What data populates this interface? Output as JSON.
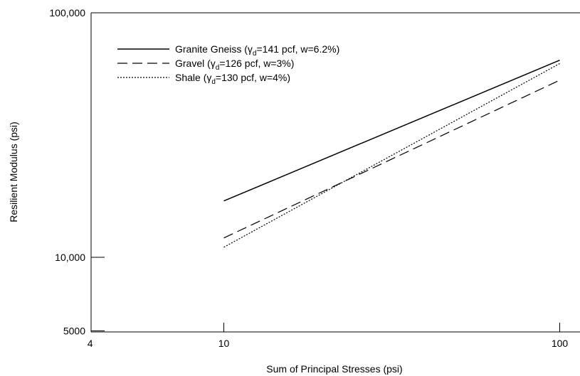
{
  "chart_data": {
    "type": "line",
    "title": "",
    "xlabel": "Sum of Principal Stresses (psi)",
    "ylabel": "Resilient Modulus (psi)",
    "x_scale": "log",
    "y_scale": "log",
    "xlim": [
      4,
      110
    ],
    "ylim": [
      5000,
      100000
    ],
    "xticks": [
      4,
      10,
      100
    ],
    "xtick_labels": [
      "4",
      "10",
      "100"
    ],
    "yticks": [
      5000,
      10000,
      100000
    ],
    "ytick_labels": [
      "5000",
      "10,000",
      "100,000"
    ],
    "grid": false,
    "legend_position": "top-left",
    "series": [
      {
        "name": "Granite Gneiss (γd=141 pcf, w=6.2%)",
        "legend_prefix": "Granite Gneiss (γ",
        "legend_sub": "d",
        "legend_suffix": "=141 pcf, w=6.2%)",
        "style": "solid",
        "x": [
          10,
          100
        ],
        "y": [
          17000,
          64000
        ]
      },
      {
        "name": "Gravel (γd=126 pcf, w=3%)",
        "legend_prefix": "Gravel (γ",
        "legend_sub": "d",
        "legend_suffix": "=126 pcf, w=3%)",
        "style": "dashed",
        "x": [
          10,
          100
        ],
        "y": [
          12000,
          53000
        ]
      },
      {
        "name": "Shale (γd=130 pcf, w=4%)",
        "legend_prefix": "Shale (γ",
        "legend_sub": "d",
        "legend_suffix": "=130 pcf, w=4%)",
        "style": "dotted",
        "x": [
          10,
          100
        ],
        "y": [
          11000,
          62000
        ]
      }
    ]
  }
}
